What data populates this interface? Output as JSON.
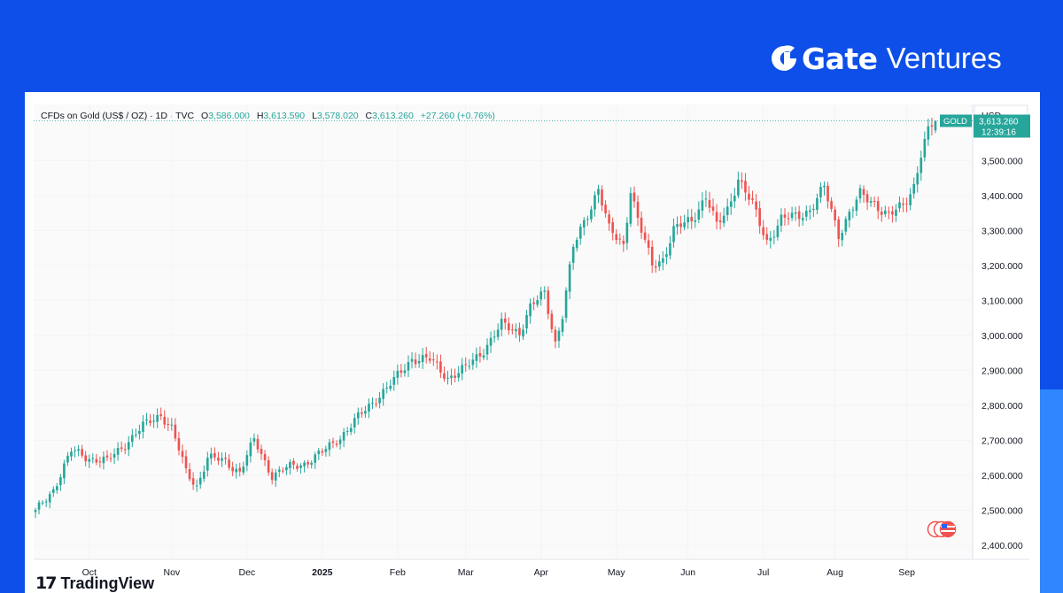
{
  "brand": {
    "name_bold": "Gate",
    "name_light": "Ventures"
  },
  "header": {
    "instrument": "CFDs on Gold (US$ / OZ) · 1D · TVC",
    "open_label": "O",
    "open": "3,586.000",
    "high_label": "H",
    "high": "3,613.590",
    "low_label": "L",
    "low": "3,578.020",
    "close_label": "C",
    "close": "3,613.260",
    "change": "+27.260 (+0.76%)",
    "currency": "USD"
  },
  "last_price": {
    "symbol": "GOLD",
    "price": "3,613.260",
    "countdown": "12:39:16"
  },
  "footer": {
    "logo_mark": "17",
    "logo_text": "TradingView"
  },
  "colors": {
    "up": "#26a69a",
    "down": "#ef5350",
    "text": "#131722",
    "muted": "#787b86",
    "brand_bg": "#0d4fe8"
  },
  "chart_data": {
    "type": "candlestick",
    "title": "CFDs on Gold (US$ / OZ) · 1D · TVC",
    "currency": "USD",
    "y_ticks": [
      "2,400.000",
      "2,500.000",
      "2,600.000",
      "2,700.000",
      "2,800.000",
      "2,900.000",
      "3,000.000",
      "3,100.000",
      "3,200.000",
      "3,300.000",
      "3,400.000",
      "3,500.000"
    ],
    "y_tick_values": [
      2400,
      2500,
      2600,
      2700,
      2800,
      2900,
      3000,
      3100,
      3200,
      3300,
      3400,
      3500
    ],
    "ylim": [
      2360,
      3660
    ],
    "x_ticks": [
      "Oct",
      "Nov",
      "Dec",
      "2025",
      "Feb",
      "Mar",
      "Apr",
      "May",
      "Jun",
      "Jul",
      "Aug",
      "Sep"
    ],
    "x_tick_index": [
      15,
      38,
      59,
      80,
      101,
      120,
      141,
      162,
      182,
      203,
      223,
      243
    ],
    "trend_closes": [
      [
        0,
        2495
      ],
      [
        5,
        2560
      ],
      [
        10,
        2670
      ],
      [
        15,
        2650
      ],
      [
        20,
        2640
      ],
      [
        25,
        2690
      ],
      [
        30,
        2740
      ],
      [
        35,
        2775
      ],
      [
        38,
        2735
      ],
      [
        42,
        2610
      ],
      [
        45,
        2570
      ],
      [
        48,
        2650
      ],
      [
        53,
        2640
      ],
      [
        57,
        2610
      ],
      [
        61,
        2700
      ],
      [
        66,
        2600
      ],
      [
        70,
        2620
      ],
      [
        75,
        2635
      ],
      [
        80,
        2665
      ],
      [
        85,
        2710
      ],
      [
        90,
        2765
      ],
      [
        95,
        2820
      ],
      [
        100,
        2870
      ],
      [
        105,
        2935
      ],
      [
        110,
        2930
      ],
      [
        115,
        2880
      ],
      [
        120,
        2905
      ],
      [
        125,
        2960
      ],
      [
        130,
        3030
      ],
      [
        135,
        3010
      ],
      [
        138,
        3080
      ],
      [
        142,
        3120
      ],
      [
        145,
        2980
      ],
      [
        147,
        3060
      ],
      [
        150,
        3250
      ],
      [
        154,
        3350
      ],
      [
        157,
        3420
      ],
      [
        160,
        3300
      ],
      [
        164,
        3260
      ],
      [
        166,
        3420
      ],
      [
        168,
        3330
      ],
      [
        172,
        3200
      ],
      [
        175,
        3220
      ],
      [
        178,
        3300
      ],
      [
        183,
        3330
      ],
      [
        187,
        3400
      ],
      [
        190,
        3310
      ],
      [
        193,
        3360
      ],
      [
        196,
        3450
      ],
      [
        200,
        3370
      ],
      [
        204,
        3270
      ],
      [
        208,
        3330
      ],
      [
        212,
        3340
      ],
      [
        216,
        3360
      ],
      [
        220,
        3420
      ],
      [
        224,
        3290
      ],
      [
        227,
        3350
      ],
      [
        230,
        3400
      ],
      [
        234,
        3380
      ],
      [
        238,
        3340
      ],
      [
        242,
        3370
      ],
      [
        245,
        3430
      ],
      [
        247,
        3520
      ],
      [
        249,
        3580
      ],
      [
        251,
        3613.26
      ]
    ],
    "last_candle": {
      "open": 3586.0,
      "high": 3613.59,
      "low": 3578.02,
      "close": 3613.26
    },
    "last_price": 3613.26
  }
}
